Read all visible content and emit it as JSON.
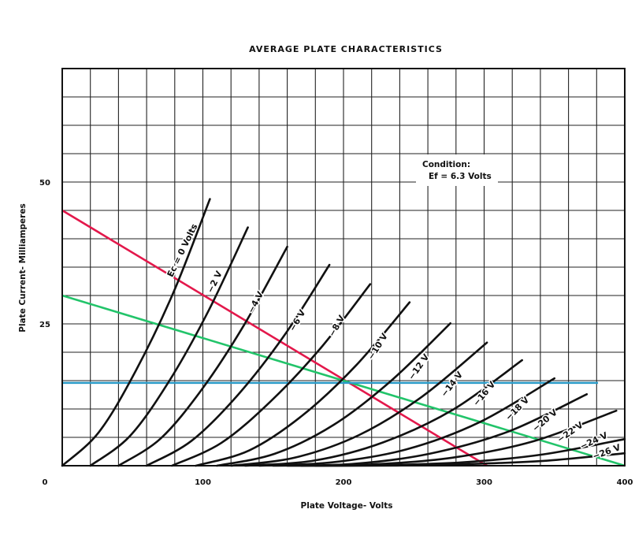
{
  "chart_data": {
    "type": "line",
    "title": "AVERAGE PLATE CHARACTERISTICS",
    "xlabel": "Plate Voltage- Volts",
    "ylabel": "Plate Current- Milliamperes",
    "xlim": [
      0,
      400
    ],
    "ylim": [
      0,
      70
    ],
    "x_ticks": [
      0,
      100,
      200,
      300,
      400
    ],
    "y_ticks": [
      25,
      50
    ],
    "x_grid_step": 20,
    "y_grid_step": 5,
    "grid": true,
    "annotation": {
      "line1": "Condition:",
      "line2": "Ef = 6.3 Volts"
    },
    "series": [
      {
        "name": "Ec = 0 Volts",
        "x": [
          0,
          26,
          52,
          79,
          105
        ],
        "y": [
          0,
          5.9,
          16.6,
          30.5,
          47
        ]
      },
      {
        "name": "−2 V",
        "x": [
          20,
          48,
          76,
          104,
          132
        ],
        "y": [
          0,
          5.2,
          14.9,
          27.3,
          42
        ]
      },
      {
        "name": "−4 V",
        "x": [
          40,
          70,
          100,
          130,
          160
        ],
        "y": [
          0,
          4.8,
          13.7,
          25.1,
          38.6
        ]
      },
      {
        "name": "−6 V",
        "x": [
          60,
          92,
          125,
          158,
          190
        ],
        "y": [
          0,
          4.4,
          12.5,
          23,
          35.4
        ]
      },
      {
        "name": "−8 V",
        "x": [
          78,
          113,
          148,
          184,
          219
        ],
        "y": [
          0,
          4,
          11.3,
          20.8,
          32
        ]
      },
      {
        "name": "−10 V",
        "x": [
          95,
          133,
          171,
          209,
          247
        ],
        "y": [
          0,
          2.7,
          8.9,
          17.7,
          28.8
        ]
      },
      {
        "name": "−12 V",
        "x": [
          110,
          151,
          193,
          234,
          276
        ],
        "y": [
          0,
          2.1,
          7.2,
          15,
          25.1
        ]
      },
      {
        "name": "−14 V",
        "x": [
          120,
          165,
          211,
          256,
          302
        ],
        "y": [
          0,
          1.4,
          5.4,
          12.2,
          21.7
        ]
      },
      {
        "name": "−16 V",
        "x": [
          130,
          179,
          228,
          278,
          327
        ],
        "y": [
          0,
          0.9,
          4.1,
          9.9,
          18.6
        ]
      },
      {
        "name": "−18 V",
        "x": [
          140,
          192,
          245,
          297,
          350
        ],
        "y": [
          0,
          0.6,
          2.9,
          7.7,
          15.4
        ]
      },
      {
        "name": "−20 V",
        "x": [
          150,
          206,
          261,
          317,
          373
        ],
        "y": [
          0,
          0.3,
          2.1,
          6,
          12.6
        ]
      },
      {
        "name": "−22 V",
        "x": [
          160,
          218,
          277,
          335,
          394
        ],
        "y": [
          0,
          0.2,
          1.4,
          4.3,
          9.7
        ]
      },
      {
        "name": "−24 V",
        "x": [
          170,
          227,
          285,
          342,
          400
        ],
        "y": [
          0,
          0.1,
          0.6,
          2,
          4.7
        ]
      },
      {
        "name": "−26 V",
        "x": [
          180,
          235,
          290,
          345,
          400
        ],
        "y": [
          0,
          0.03,
          0.3,
          0.9,
          2.2
        ]
      }
    ],
    "load_lines": [
      {
        "name": "red-load-line",
        "color": "#e3184b",
        "x": [
          0,
          302
        ],
        "y": [
          45,
          0
        ]
      },
      {
        "name": "green-load-line",
        "color": "#22c46a",
        "x": [
          0,
          400
        ],
        "y": [
          30,
          0
        ]
      },
      {
        "name": "blue-bias-line",
        "color": "#2b9bc8",
        "x": [
          0,
          381
        ],
        "y": [
          14.6,
          14.6
        ]
      }
    ]
  }
}
